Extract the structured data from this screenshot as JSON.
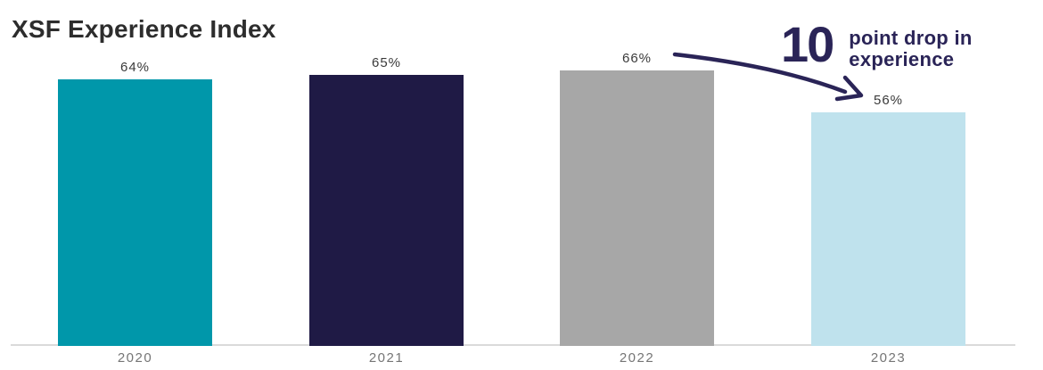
{
  "title": "XSF Experience Index",
  "annotation": {
    "number": "10",
    "line1": "point drop in",
    "line2": "experience",
    "color": "#2a2457"
  },
  "chart_data": {
    "type": "bar",
    "title": "XSF Experience Index",
    "categories": [
      "2020",
      "2021",
      "2022",
      "2023"
    ],
    "values": [
      64,
      65,
      66,
      56
    ],
    "labels": [
      "64%",
      "65%",
      "66%",
      "56%"
    ],
    "bar_colors": [
      "#0097AA",
      "#1F1A45",
      "#A7A7A7",
      "#BFE2ED"
    ],
    "xlabel": "",
    "ylabel": "",
    "ylim": [
      0,
      70
    ],
    "grid": false,
    "legend": false,
    "annotation_text": "10 point drop in experience"
  },
  "colors": {
    "title_text": "#2d2d2d",
    "value_label_text": "#3a3a3a",
    "year_label_text": "#757575",
    "axis_line": "#dadada",
    "annotation_navy": "#2a2457"
  }
}
